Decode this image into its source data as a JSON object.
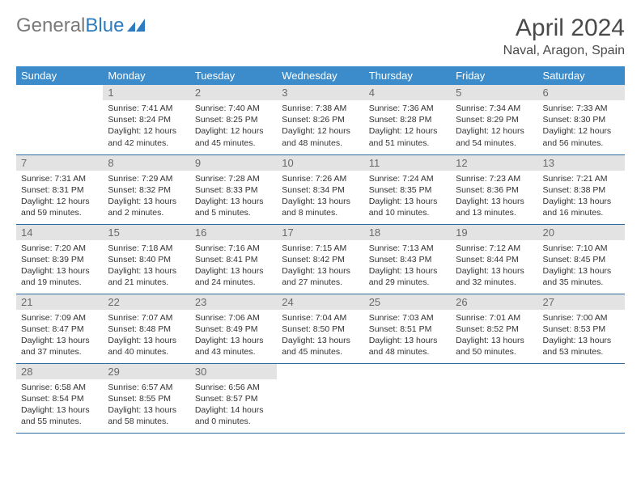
{
  "logo": {
    "text_gray": "General",
    "text_blue": "Blue"
  },
  "title": "April 2024",
  "location": "Naval, Aragon, Spain",
  "colors": {
    "header_bg": "#3c8ccc",
    "header_text": "#ffffff",
    "daynum_bg": "#e3e3e3",
    "daynum_text": "#6a6a6a",
    "border": "#2d6aa0",
    "title_text": "#4a4a4a",
    "logo_gray": "#7a7a7a",
    "logo_blue": "#2d7cc0"
  },
  "weekdays": [
    "Sunday",
    "Monday",
    "Tuesday",
    "Wednesday",
    "Thursday",
    "Friday",
    "Saturday"
  ],
  "weeks": [
    [
      null,
      {
        "n": "1",
        "sr": "Sunrise: 7:41 AM",
        "ss": "Sunset: 8:24 PM",
        "d1": "Daylight: 12 hours",
        "d2": "and 42 minutes."
      },
      {
        "n": "2",
        "sr": "Sunrise: 7:40 AM",
        "ss": "Sunset: 8:25 PM",
        "d1": "Daylight: 12 hours",
        "d2": "and 45 minutes."
      },
      {
        "n": "3",
        "sr": "Sunrise: 7:38 AM",
        "ss": "Sunset: 8:26 PM",
        "d1": "Daylight: 12 hours",
        "d2": "and 48 minutes."
      },
      {
        "n": "4",
        "sr": "Sunrise: 7:36 AM",
        "ss": "Sunset: 8:28 PM",
        "d1": "Daylight: 12 hours",
        "d2": "and 51 minutes."
      },
      {
        "n": "5",
        "sr": "Sunrise: 7:34 AM",
        "ss": "Sunset: 8:29 PM",
        "d1": "Daylight: 12 hours",
        "d2": "and 54 minutes."
      },
      {
        "n": "6",
        "sr": "Sunrise: 7:33 AM",
        "ss": "Sunset: 8:30 PM",
        "d1": "Daylight: 12 hours",
        "d2": "and 56 minutes."
      }
    ],
    [
      {
        "n": "7",
        "sr": "Sunrise: 7:31 AM",
        "ss": "Sunset: 8:31 PM",
        "d1": "Daylight: 12 hours",
        "d2": "and 59 minutes."
      },
      {
        "n": "8",
        "sr": "Sunrise: 7:29 AM",
        "ss": "Sunset: 8:32 PM",
        "d1": "Daylight: 13 hours",
        "d2": "and 2 minutes."
      },
      {
        "n": "9",
        "sr": "Sunrise: 7:28 AM",
        "ss": "Sunset: 8:33 PM",
        "d1": "Daylight: 13 hours",
        "d2": "and 5 minutes."
      },
      {
        "n": "10",
        "sr": "Sunrise: 7:26 AM",
        "ss": "Sunset: 8:34 PM",
        "d1": "Daylight: 13 hours",
        "d2": "and 8 minutes."
      },
      {
        "n": "11",
        "sr": "Sunrise: 7:24 AM",
        "ss": "Sunset: 8:35 PM",
        "d1": "Daylight: 13 hours",
        "d2": "and 10 minutes."
      },
      {
        "n": "12",
        "sr": "Sunrise: 7:23 AM",
        "ss": "Sunset: 8:36 PM",
        "d1": "Daylight: 13 hours",
        "d2": "and 13 minutes."
      },
      {
        "n": "13",
        "sr": "Sunrise: 7:21 AM",
        "ss": "Sunset: 8:38 PM",
        "d1": "Daylight: 13 hours",
        "d2": "and 16 minutes."
      }
    ],
    [
      {
        "n": "14",
        "sr": "Sunrise: 7:20 AM",
        "ss": "Sunset: 8:39 PM",
        "d1": "Daylight: 13 hours",
        "d2": "and 19 minutes."
      },
      {
        "n": "15",
        "sr": "Sunrise: 7:18 AM",
        "ss": "Sunset: 8:40 PM",
        "d1": "Daylight: 13 hours",
        "d2": "and 21 minutes."
      },
      {
        "n": "16",
        "sr": "Sunrise: 7:16 AM",
        "ss": "Sunset: 8:41 PM",
        "d1": "Daylight: 13 hours",
        "d2": "and 24 minutes."
      },
      {
        "n": "17",
        "sr": "Sunrise: 7:15 AM",
        "ss": "Sunset: 8:42 PM",
        "d1": "Daylight: 13 hours",
        "d2": "and 27 minutes."
      },
      {
        "n": "18",
        "sr": "Sunrise: 7:13 AM",
        "ss": "Sunset: 8:43 PM",
        "d1": "Daylight: 13 hours",
        "d2": "and 29 minutes."
      },
      {
        "n": "19",
        "sr": "Sunrise: 7:12 AM",
        "ss": "Sunset: 8:44 PM",
        "d1": "Daylight: 13 hours",
        "d2": "and 32 minutes."
      },
      {
        "n": "20",
        "sr": "Sunrise: 7:10 AM",
        "ss": "Sunset: 8:45 PM",
        "d1": "Daylight: 13 hours",
        "d2": "and 35 minutes."
      }
    ],
    [
      {
        "n": "21",
        "sr": "Sunrise: 7:09 AM",
        "ss": "Sunset: 8:47 PM",
        "d1": "Daylight: 13 hours",
        "d2": "and 37 minutes."
      },
      {
        "n": "22",
        "sr": "Sunrise: 7:07 AM",
        "ss": "Sunset: 8:48 PM",
        "d1": "Daylight: 13 hours",
        "d2": "and 40 minutes."
      },
      {
        "n": "23",
        "sr": "Sunrise: 7:06 AM",
        "ss": "Sunset: 8:49 PM",
        "d1": "Daylight: 13 hours",
        "d2": "and 43 minutes."
      },
      {
        "n": "24",
        "sr": "Sunrise: 7:04 AM",
        "ss": "Sunset: 8:50 PM",
        "d1": "Daylight: 13 hours",
        "d2": "and 45 minutes."
      },
      {
        "n": "25",
        "sr": "Sunrise: 7:03 AM",
        "ss": "Sunset: 8:51 PM",
        "d1": "Daylight: 13 hours",
        "d2": "and 48 minutes."
      },
      {
        "n": "26",
        "sr": "Sunrise: 7:01 AM",
        "ss": "Sunset: 8:52 PM",
        "d1": "Daylight: 13 hours",
        "d2": "and 50 minutes."
      },
      {
        "n": "27",
        "sr": "Sunrise: 7:00 AM",
        "ss": "Sunset: 8:53 PM",
        "d1": "Daylight: 13 hours",
        "d2": "and 53 minutes."
      }
    ],
    [
      {
        "n": "28",
        "sr": "Sunrise: 6:58 AM",
        "ss": "Sunset: 8:54 PM",
        "d1": "Daylight: 13 hours",
        "d2": "and 55 minutes."
      },
      {
        "n": "29",
        "sr": "Sunrise: 6:57 AM",
        "ss": "Sunset: 8:55 PM",
        "d1": "Daylight: 13 hours",
        "d2": "and 58 minutes."
      },
      {
        "n": "30",
        "sr": "Sunrise: 6:56 AM",
        "ss": "Sunset: 8:57 PM",
        "d1": "Daylight: 14 hours",
        "d2": "and 0 minutes."
      },
      null,
      null,
      null,
      null
    ]
  ]
}
